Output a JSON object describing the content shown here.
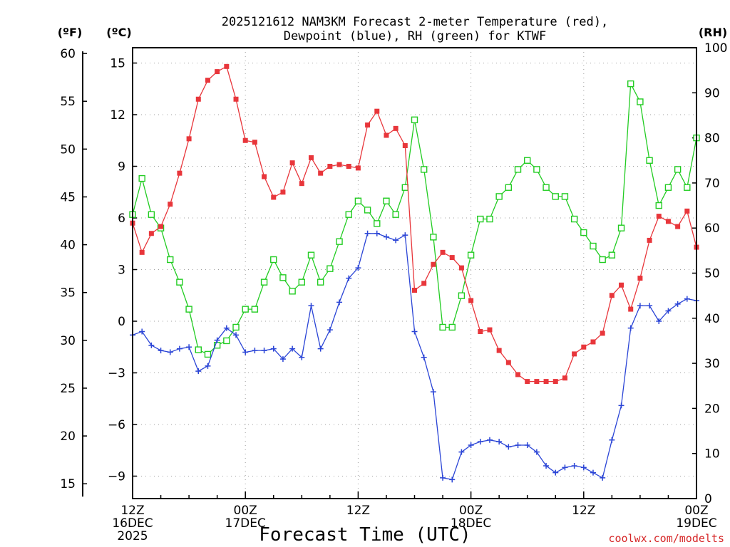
{
  "title": {
    "line1": "2025121612 NAM3KM Forecast 2-meter Temperature (red),",
    "line2": "Dewpoint (blue), RH (green) for KTWF"
  },
  "units": {
    "fahrenheit": "(ºF)",
    "celsius": "(ºC)",
    "rh": "(RH)"
  },
  "credit": "coolwx.com/modelts",
  "colors": {
    "temperature": "#e8363b",
    "dewpoint": "#2b45d6",
    "rh": "#22cc22",
    "credit": "#d62728"
  },
  "chart_data": {
    "type": "line",
    "x_unit": "forecast hour",
    "x": [
      0,
      1,
      2,
      3,
      4,
      5,
      6,
      7,
      8,
      9,
      10,
      11,
      12,
      13,
      14,
      15,
      16,
      17,
      18,
      19,
      20,
      21,
      22,
      23,
      24,
      25,
      26,
      27,
      28,
      29,
      30,
      31,
      32,
      33,
      34,
      35,
      36,
      37,
      38,
      39,
      40,
      41,
      42,
      43,
      44,
      45,
      46,
      47,
      48,
      49,
      50,
      51,
      52,
      53,
      54,
      55,
      56,
      57,
      58,
      59,
      60
    ],
    "xlim": [
      0,
      60
    ],
    "x_ticks": [
      {
        "x": 0,
        "lines": [
          "12Z",
          "16DEC",
          "2025"
        ]
      },
      {
        "x": 12,
        "lines": [
          "00Z",
          "17DEC"
        ]
      },
      {
        "x": 24,
        "lines": [
          "12Z"
        ]
      },
      {
        "x": 36,
        "lines": [
          "00Z",
          "18DEC"
        ]
      },
      {
        "x": 48,
        "lines": [
          "12Z"
        ]
      },
      {
        "x": 60,
        "lines": [
          "00Z",
          "19DEC"
        ]
      }
    ],
    "xlabel": "Forecast Time (UTC)",
    "left_axis_celsius": {
      "ylim": [
        -10.5,
        15.8
      ],
      "ticks": [
        15,
        12,
        9,
        6,
        3,
        0,
        -3,
        -6,
        -9
      ],
      "tick_labels": [
        "15",
        "12",
        "9",
        "6",
        "3",
        "0",
        "−3",
        "−6",
        "−9"
      ]
    },
    "far_left_axis_fahrenheit": {
      "ticks": [
        60,
        55,
        50,
        45,
        40,
        35,
        30,
        25,
        20,
        15
      ],
      "tick_labels": [
        "60",
        "55",
        "50",
        "45",
        "40",
        "35",
        "30",
        "25",
        "20",
        "15"
      ]
    },
    "right_axis_rh": {
      "ylim": [
        0,
        100
      ],
      "ticks": [
        100,
        90,
        80,
        70,
        60,
        50,
        40,
        30,
        20,
        10,
        0
      ],
      "tick_labels": [
        "100",
        "90",
        "80",
        "70",
        "60",
        "50",
        "40",
        "30",
        "20",
        "10",
        "0"
      ]
    },
    "series": [
      {
        "name": "2-meter Temperature",
        "unit": "°C",
        "axis": "left",
        "marker": "filled-square",
        "values": [
          5.7,
          4.0,
          5.1,
          5.5,
          6.8,
          8.6,
          10.6,
          12.9,
          14.0,
          14.5,
          14.8,
          12.9,
          10.5,
          10.4,
          8.4,
          7.2,
          7.5,
          9.2,
          8.0,
          9.5,
          8.6,
          9.0,
          9.1,
          9.0,
          8.9,
          11.4,
          12.2,
          10.8,
          11.2,
          10.2,
          1.8,
          2.2,
          3.3,
          4.0,
          3.7,
          3.1,
          1.2,
          -0.6,
          -0.5,
          -1.7,
          -2.4,
          -3.1,
          -3.5,
          -3.5,
          -3.5,
          -3.5,
          -3.3,
          -1.9,
          -1.5,
          -1.2,
          -0.7,
          1.5,
          2.1,
          0.7,
          2.5,
          4.7,
          6.1,
          5.8,
          5.5,
          6.4,
          4.3
        ]
      },
      {
        "name": "Dewpoint",
        "unit": "°C",
        "axis": "left",
        "marker": "plus",
        "values": [
          -0.8,
          -0.6,
          -1.4,
          -1.7,
          -1.8,
          -1.6,
          -1.5,
          -2.9,
          -2.6,
          -1.1,
          -0.4,
          -0.8,
          -1.8,
          -1.7,
          -1.7,
          -1.6,
          -2.2,
          -1.6,
          -2.1,
          0.9,
          -1.6,
          -0.5,
          1.1,
          2.5,
          3.1,
          5.1,
          5.1,
          4.9,
          4.7,
          5.0,
          -0.6,
          -2.1,
          -4.1,
          -9.1,
          -9.2,
          -7.6,
          -7.2,
          -7.0,
          -6.9,
          -7.0,
          -7.3,
          -7.2,
          -7.2,
          -7.6,
          -8.4,
          -8.8,
          -8.5,
          -8.4,
          -8.5,
          -8.8,
          -9.1,
          -6.9,
          -4.9,
          -0.4,
          0.9,
          0.9,
          0.0,
          0.6,
          1.0,
          1.3,
          1.2
        ]
      },
      {
        "name": "RH",
        "unit": "%",
        "axis": "right",
        "marker": "open-square",
        "values": [
          63,
          71,
          63,
          60,
          53,
          48,
          42,
          33,
          32,
          34,
          35,
          38,
          42,
          42,
          48,
          53,
          49,
          46,
          48,
          54,
          48,
          51,
          57,
          63,
          66,
          64,
          61,
          66,
          63,
          69,
          84,
          73,
          58,
          38,
          38,
          45,
          54,
          62,
          62,
          67,
          69,
          73,
          75,
          73,
          69,
          67,
          67,
          62,
          59,
          56,
          53,
          54,
          60,
          92,
          88,
          75,
          65,
          69,
          73,
          69,
          80
        ]
      }
    ]
  }
}
